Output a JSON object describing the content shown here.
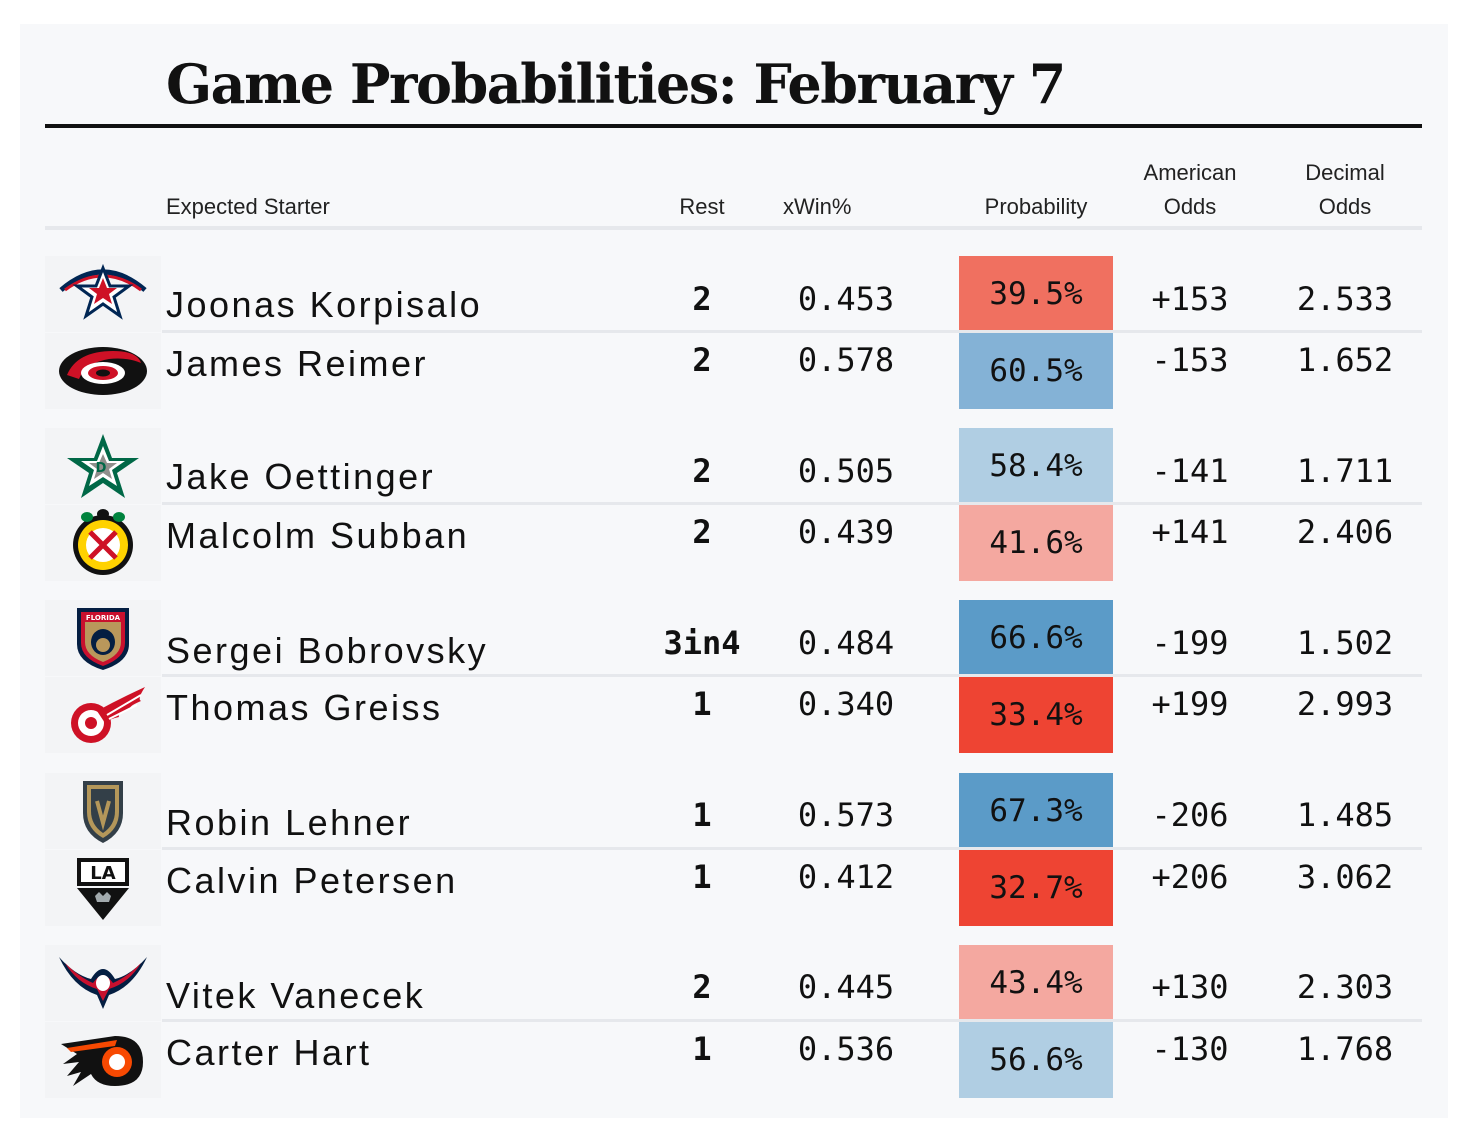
{
  "title": "Game Probabilities: February 7",
  "headers": {
    "expected_starter": "Expected Starter",
    "rest": "Rest",
    "xwin": "xWin%",
    "probability": "Probability",
    "american_odds_1": "American",
    "american_odds_2": "Odds",
    "decimal_odds_1": "Decimal",
    "decimal_odds_2": "Odds"
  },
  "colors": {
    "strong_red": "#ee4433",
    "medium_red": "#f07060",
    "light_red": "#f4a8a0",
    "strong_blue": "#5b9bc8",
    "medium_blue": "#84b2d6",
    "light_blue": "#b0cee3"
  },
  "games": [
    {
      "starters": [
        {
          "team_icon": "blue-jackets-logo-icon",
          "name": "Joonas Korpisalo",
          "rest": "2",
          "xwin": "0.453",
          "probability": "39.5%",
          "prob_color": "#f07060",
          "american_odds": "+153",
          "decimal_odds": "2.533"
        },
        {
          "team_icon": "hurricanes-logo-icon",
          "name": "James Reimer",
          "rest": "2",
          "xwin": "0.578",
          "probability": "60.5%",
          "prob_color": "#84b2d6",
          "american_odds": "-153",
          "decimal_odds": "1.652"
        }
      ]
    },
    {
      "starters": [
        {
          "team_icon": "stars-logo-icon",
          "name": "Jake Oettinger",
          "rest": "2",
          "xwin": "0.505",
          "probability": "58.4%",
          "prob_color": "#b0cee3",
          "american_odds": "-141",
          "decimal_odds": "1.711"
        },
        {
          "team_icon": "blackhawks-logo-icon",
          "name": "Malcolm Subban",
          "rest": "2",
          "xwin": "0.439",
          "probability": "41.6%",
          "prob_color": "#f4a8a0",
          "american_odds": "+141",
          "decimal_odds": "2.406"
        }
      ]
    },
    {
      "starters": [
        {
          "team_icon": "panthers-logo-icon",
          "name": "Sergei Bobrovsky",
          "rest": "3in4",
          "xwin": "0.484",
          "probability": "66.6%",
          "prob_color": "#5b9bc8",
          "american_odds": "-199",
          "decimal_odds": "1.502"
        },
        {
          "team_icon": "red-wings-logo-icon",
          "name": "Thomas Greiss",
          "rest": "1",
          "xwin": "0.340",
          "probability": "33.4%",
          "prob_color": "#ee4433",
          "american_odds": "+199",
          "decimal_odds": "2.993"
        }
      ]
    },
    {
      "starters": [
        {
          "team_icon": "golden-knights-logo-icon",
          "name": "Robin Lehner",
          "rest": "1",
          "xwin": "0.573",
          "probability": "67.3%",
          "prob_color": "#5b9bc8",
          "american_odds": "-206",
          "decimal_odds": "1.485"
        },
        {
          "team_icon": "kings-logo-icon",
          "name": "Calvin Petersen",
          "rest": "1",
          "xwin": "0.412",
          "probability": "32.7%",
          "prob_color": "#ee4433",
          "american_odds": "+206",
          "decimal_odds": "3.062"
        }
      ]
    },
    {
      "starters": [
        {
          "team_icon": "capitals-logo-icon",
          "name": "Vitek Vanecek",
          "rest": "2",
          "xwin": "0.445",
          "probability": "43.4%",
          "prob_color": "#f4a8a0",
          "american_odds": "+130",
          "decimal_odds": "2.303"
        },
        {
          "team_icon": "flyers-logo-icon",
          "name": "Carter Hart",
          "rest": "1",
          "xwin": "0.536",
          "probability": "56.6%",
          "prob_color": "#b0cee3",
          "american_odds": "-130",
          "decimal_odds": "1.768"
        }
      ]
    }
  ],
  "logo_text": {
    "panthers": "FLORIDA",
    "kings": "LA"
  }
}
